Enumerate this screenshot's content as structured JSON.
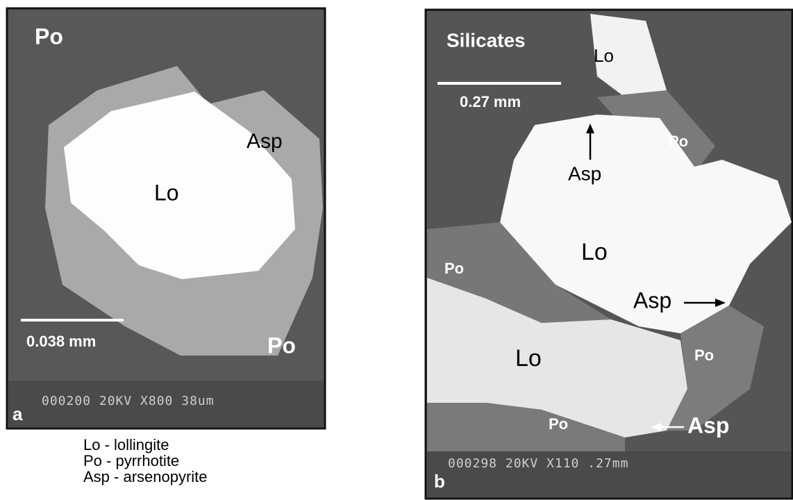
{
  "panel_a": {
    "letter": "a",
    "labels": [
      "Po",
      "Asp",
      "Lo",
      "Po"
    ],
    "scale": "0.038 mm",
    "sem_info": "000200 20KV  X800    38um"
  },
  "panel_b": {
    "letter": "b",
    "labels": [
      "Silicates",
      "Lo",
      "Po",
      "Asp",
      "Lo",
      "Po",
      "Asp",
      "Po",
      "Lo",
      "Po",
      "Asp"
    ],
    "scale": "0.27 mm",
    "sem_info": "000298 20KV  X110    .27mm"
  },
  "legend": [
    "Lo - lollingite",
    "Po - pyrrhotite",
    "Asp - arsenopyrite"
  ]
}
